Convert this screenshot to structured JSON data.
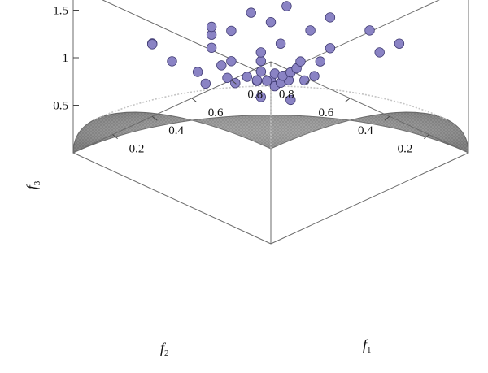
{
  "chart_data": {
    "type": "scatter",
    "subtype": "3d-scatter-over-surface",
    "title": "",
    "axes": {
      "x": {
        "label": "f",
        "label_sub": "1",
        "ticks": [
          "0.2",
          "0.4",
          "0.6",
          "0.8"
        ],
        "range": [
          0,
          1
        ]
      },
      "y": {
        "label": "f",
        "label_sub": "2",
        "ticks": [
          "0.2",
          "0.4",
          "0.6",
          "0.8"
        ],
        "range": [
          0,
          1
        ]
      },
      "z": {
        "label": "f",
        "label_sub": "3",
        "ticks": [
          "0.5",
          "1",
          "1.5"
        ],
        "range": [
          0,
          1.75
        ]
      }
    },
    "surface": {
      "shape": "unit-sphere-octant",
      "color": "#8e8e8e"
    },
    "marker_color": "#8a83c4",
    "points": [
      [
        0.05,
        0.05,
        1.62
      ],
      [
        0.04,
        0.02,
        1.6
      ],
      [
        0.1,
        0.05,
        1.55
      ],
      [
        0.05,
        0.12,
        1.55
      ],
      [
        0.12,
        0.1,
        1.58
      ],
      [
        0.08,
        0.15,
        1.5
      ],
      [
        0.15,
        0.06,
        1.52
      ],
      [
        0.18,
        0.12,
        1.48
      ],
      [
        0.02,
        0.2,
        1.48
      ],
      [
        0.22,
        0.05,
        1.46
      ],
      [
        0.1,
        0.22,
        1.45
      ],
      [
        0.25,
        0.15,
        1.42
      ],
      [
        0.06,
        0.28,
        1.42
      ],
      [
        0.3,
        0.08,
        1.4
      ],
      [
        0.2,
        0.25,
        1.38
      ],
      [
        0.35,
        0.22,
        1.3
      ],
      [
        0.45,
        0.3,
        1.2
      ],
      [
        0.15,
        0.4,
        1.35
      ],
      [
        0.3,
        0.35,
        1.3
      ],
      [
        0.08,
        0.45,
        1.3
      ],
      [
        0.25,
        0.45,
        1.25
      ],
      [
        0.4,
        0.45,
        1.2
      ],
      [
        0.5,
        0.25,
        1.2
      ],
      [
        0.1,
        0.6,
        1.25
      ],
      [
        0.3,
        0.6,
        1.2
      ],
      [
        0.55,
        0.5,
        1.1
      ],
      [
        0.65,
        0.35,
        1.1
      ],
      [
        0.7,
        0.15,
        1.2
      ],
      [
        0.2,
        0.8,
        1.15
      ],
      [
        0.45,
        0.75,
        1.05
      ],
      [
        0.85,
        0.2,
        1.1
      ],
      [
        0.75,
        0.55,
        1.0
      ],
      [
        0.9,
        0.4,
        1.0
      ],
      [
        0.3,
        0.9,
        0.95
      ],
      [
        0.6,
        0.8,
        0.9
      ],
      [
        0.95,
        0.65,
        0.85
      ],
      [
        0.8,
        0.8,
        0.8
      ],
      [
        0.65,
        0.95,
        0.75
      ],
      [
        0.98,
        0.9,
        0.7
      ],
      [
        0.88,
        0.98,
        0.65
      ],
      [
        0.05,
        0.1,
        1.4
      ],
      [
        0.12,
        0.02,
        1.38
      ],
      [
        0.18,
        0.2,
        1.35
      ],
      [
        0.02,
        0.35,
        1.33
      ]
    ]
  }
}
